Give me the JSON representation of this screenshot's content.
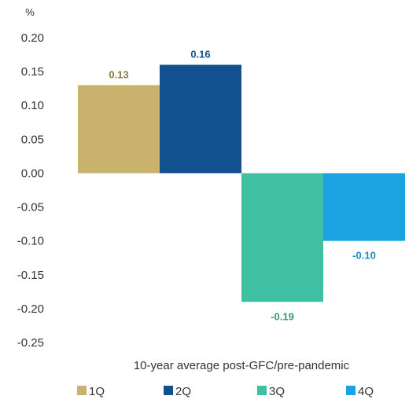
{
  "chart_data": {
    "type": "bar",
    "title": "",
    "unit_label": "%",
    "xlabel": "10-year average post-GFC/pre-pandemic",
    "ylabel": "",
    "ylim": [
      -0.25,
      0.2
    ],
    "yticks": [
      "0.20",
      "0.15",
      "0.10",
      "0.05",
      "0.00",
      "-0.05",
      "-0.10",
      "-0.15",
      "-0.20",
      "-0.25"
    ],
    "grid": false,
    "legend_position": "bottom",
    "series": [
      {
        "name": "1Q",
        "value": 0.13,
        "label": "0.13",
        "color": "#C9B26B",
        "label_color": "#8A7A3E"
      },
      {
        "name": "2Q",
        "value": 0.16,
        "label": "0.16",
        "color": "#12508F",
        "label_color": "#12508F"
      },
      {
        "name": "3Q",
        "value": -0.19,
        "label": "-0.19",
        "color": "#3FC0A2",
        "label_color": "#2E9A80"
      },
      {
        "name": "4Q",
        "value": -0.1,
        "label": "-0.10",
        "color": "#1AA3E0",
        "label_color": "#1A8CC4"
      }
    ]
  }
}
